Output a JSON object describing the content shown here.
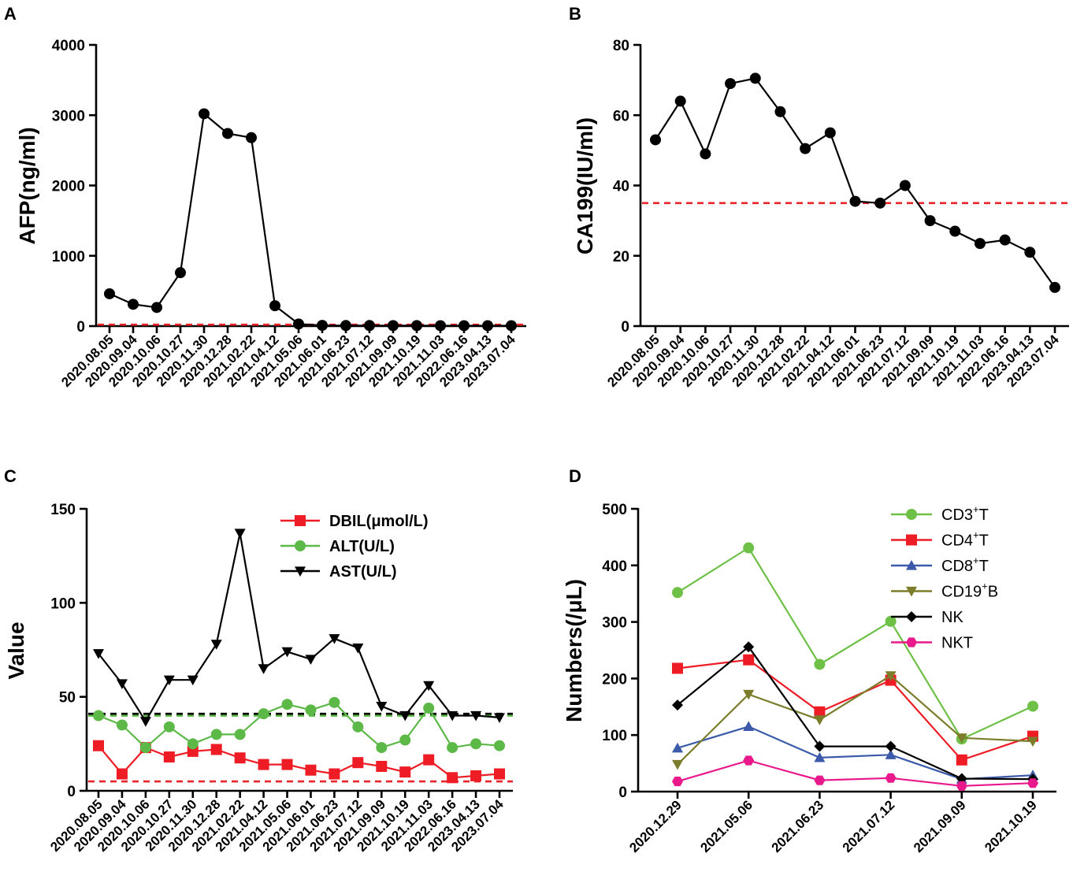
{
  "chart_data": [
    {
      "panel": "A",
      "type": "line",
      "ylabel": "AFP(ng/ml)",
      "ylim": [
        0,
        4000
      ],
      "yticks": [
        "0",
        "1000",
        "2000",
        "3000",
        "4000"
      ],
      "categories": [
        "2020.08.05",
        "2020.09.04",
        "2020.10.06",
        "2020.10.27",
        "2020.11.30",
        "2020.12.28",
        "2021.02.22",
        "2021.04.12",
        "2021.05.06",
        "2021.06.01",
        "2021.06.23",
        "2021.07.12",
        "2021.09.09",
        "2021.10.19",
        "2021.11.03",
        "2022.06.16",
        "2023.04.13",
        "2023.07.04"
      ],
      "series": [
        {
          "name": "AFP",
          "color": "#000000",
          "marker": "circle",
          "values": [
            460,
            310,
            265,
            760,
            3020,
            2740,
            2680,
            290,
            30,
            10,
            8,
            8,
            7,
            7,
            6,
            6,
            6,
            6
          ]
        }
      ],
      "reference_line": {
        "value": 20,
        "color": "#e8232a"
      }
    },
    {
      "panel": "B",
      "type": "line",
      "ylabel": "CA199(IU/ml)",
      "ylim": [
        0,
        80
      ],
      "yticks": [
        "0",
        "20",
        "40",
        "60",
        "80"
      ],
      "categories": [
        "2020.08.05",
        "2020.09.04",
        "2020.10.06",
        "2020.10.27",
        "2020.11.30",
        "2020.12.28",
        "2021.02.22",
        "2021.04.12",
        "2021.06.01",
        "2021.06.23",
        "2021.07.12",
        "2021.09.09",
        "2021.10.19",
        "2021.11.03",
        "2022.06.16",
        "2023.04.13",
        "2023.07.04"
      ],
      "series": [
        {
          "name": "CA199",
          "color": "#000000",
          "marker": "circle",
          "values": [
            53,
            64,
            49,
            69,
            70.5,
            61,
            50.5,
            55,
            35.5,
            35,
            40,
            30,
            27,
            23.5,
            24.5,
            21,
            11
          ]
        }
      ],
      "reference_line": {
        "value": 35,
        "color": "#e8232a"
      }
    },
    {
      "panel": "C",
      "type": "line",
      "ylabel": "Value",
      "ylim": [
        0,
        150
      ],
      "yticks": [
        "0",
        "50",
        "100",
        "150"
      ],
      "categories": [
        "2020.08.05",
        "2020.09.04",
        "2020.10.06",
        "2020.10.27",
        "2020.11.30",
        "2020.12.28",
        "2021.02.22",
        "2021.04.12",
        "2021.05.06",
        "2021.06.01",
        "2021.06.23",
        "2021.07.12",
        "2021.09.09",
        "2021.10.19",
        "2021.11.03",
        "2022.06.16",
        "2023.04.13",
        "2023.07.04"
      ],
      "legend_position": "top-right",
      "series": [
        {
          "name": "DBIL(μmol/L)",
          "color": "#ee1c25",
          "marker": "square",
          "values": [
            24,
            9,
            23,
            18,
            21,
            22,
            17.5,
            14,
            14,
            11,
            9,
            15,
            13,
            10,
            16.5,
            7,
            8,
            9
          ]
        },
        {
          "name": "ALT(U/L)",
          "color": "#5cb947",
          "marker": "circle",
          "values": [
            40,
            35,
            23,
            34,
            25,
            30,
            30,
            41,
            46,
            43,
            47,
            34,
            23,
            27,
            44,
            23,
            25,
            24
          ]
        },
        {
          "name": "AST(U/L)",
          "color": "#000000",
          "marker": "triangle-down",
          "values": [
            73,
            57,
            37,
            59,
            59,
            78,
            137,
            65,
            74,
            70,
            81,
            76,
            45,
            40,
            56,
            40,
            40,
            39
          ]
        }
      ],
      "reference_lines": [
        {
          "value": 40,
          "color": "#5cb947"
        },
        {
          "value": 41,
          "color": "#000000"
        },
        {
          "value": 5,
          "color": "#e8232a"
        }
      ]
    },
    {
      "panel": "D",
      "type": "line",
      "ylabel": "Numbers(/μL)",
      "ylim": [
        0,
        500
      ],
      "yticks": [
        "0",
        "100",
        "200",
        "300",
        "400",
        "500"
      ],
      "categories": [
        "2020.12.29",
        "2021.05.06",
        "2021.06.23",
        "2021.07.12",
        "2021.09.09",
        "2021.10.19"
      ],
      "legend_position": "top-right",
      "series": [
        {
          "name": "CD3",
          "sup": "+",
          "suffix": "T",
          "color": "#6ec047",
          "marker": "circle",
          "values": [
            352,
            431,
            225,
            301,
            93,
            151
          ]
        },
        {
          "name": "CD4",
          "sup": "+",
          "suffix": "T",
          "color": "#ee1c25",
          "marker": "square",
          "values": [
            218,
            233,
            141,
            197,
            56,
            98
          ]
        },
        {
          "name": "CD8",
          "sup": "+",
          "suffix": "T",
          "color": "#3b5aa9",
          "marker": "triangle-up",
          "values": [
            77,
            115,
            60,
            65,
            22,
            29
          ]
        },
        {
          "name": "CD19",
          "sup": "+",
          "suffix": "B",
          "color": "#7b7d2a",
          "marker": "triangle-down",
          "values": [
            48,
            172,
            127,
            205,
            95,
            89
          ]
        },
        {
          "name": "NK",
          "sup": "",
          "suffix": "",
          "color": "#000000",
          "marker": "diamond",
          "values": [
            153,
            256,
            80,
            80,
            23,
            22
          ]
        },
        {
          "name": "NKT",
          "sup": "",
          "suffix": "",
          "color": "#e9198b",
          "marker": "hexagon",
          "values": [
            18,
            55,
            20,
            24,
            10,
            15
          ]
        }
      ]
    }
  ]
}
